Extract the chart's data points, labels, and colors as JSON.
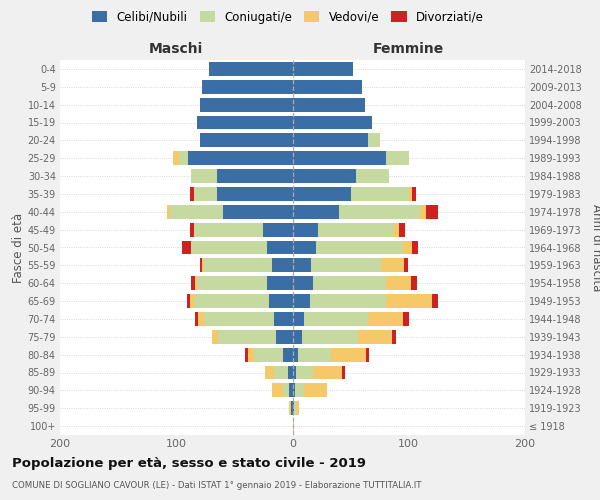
{
  "age_groups": [
    "100+",
    "95-99",
    "90-94",
    "85-89",
    "80-84",
    "75-79",
    "70-74",
    "65-69",
    "60-64",
    "55-59",
    "50-54",
    "45-49",
    "40-44",
    "35-39",
    "30-34",
    "25-29",
    "20-24",
    "15-19",
    "10-14",
    "5-9",
    "0-4"
  ],
  "birth_years": [
    "≤ 1918",
    "1919-1923",
    "1924-1928",
    "1929-1933",
    "1934-1938",
    "1939-1943",
    "1944-1948",
    "1949-1953",
    "1954-1958",
    "1959-1963",
    "1964-1968",
    "1969-1973",
    "1974-1978",
    "1979-1983",
    "1984-1988",
    "1989-1993",
    "1994-1998",
    "1999-2003",
    "2004-2008",
    "2009-2013",
    "2014-2018"
  ],
  "colors": {
    "celibe": "#3a6ea5",
    "coniugato": "#c5d9a0",
    "vedovo": "#f5c96a",
    "divorziato": "#cc2222"
  },
  "maschi": {
    "celibe": [
      0,
      1,
      3,
      4,
      8,
      14,
      16,
      20,
      22,
      18,
      22,
      25,
      60,
      65,
      65,
      90,
      80,
      82,
      80,
      78,
      72
    ],
    "coniugato": [
      0,
      0,
      5,
      12,
      25,
      50,
      60,
      65,
      60,
      58,
      65,
      60,
      45,
      20,
      22,
      8,
      0,
      0,
      0,
      0,
      0
    ],
    "vedovo": [
      0,
      2,
      10,
      8,
      5,
      5,
      5,
      3,
      2,
      2,
      0,
      0,
      3,
      0,
      0,
      5,
      0,
      0,
      0,
      0,
      0
    ],
    "divorziato": [
      0,
      0,
      0,
      0,
      3,
      0,
      3,
      3,
      3,
      2,
      8,
      3,
      0,
      3,
      0,
      0,
      0,
      0,
      0,
      0,
      0
    ]
  },
  "femmine": {
    "nubile": [
      0,
      1,
      2,
      3,
      5,
      8,
      10,
      15,
      18,
      16,
      20,
      22,
      40,
      50,
      55,
      80,
      65,
      68,
      62,
      60,
      52
    ],
    "coniugata": [
      0,
      2,
      8,
      15,
      28,
      48,
      55,
      65,
      62,
      60,
      75,
      65,
      70,
      50,
      28,
      20,
      10,
      0,
      0,
      0,
      0
    ],
    "vedova": [
      1,
      3,
      20,
      25,
      30,
      30,
      30,
      40,
      22,
      20,
      8,
      5,
      5,
      3,
      0,
      0,
      0,
      0,
      0,
      0,
      0
    ],
    "divorziata": [
      0,
      0,
      0,
      2,
      3,
      3,
      5,
      5,
      5,
      3,
      5,
      5,
      10,
      3,
      0,
      0,
      0,
      0,
      0,
      0,
      0
    ]
  },
  "title": "Popolazione per età, sesso e stato civile - 2019",
  "subtitle": "COMUNE DI SOGLIANO CAVOUR (LE) - Dati ISTAT 1° gennaio 2019 - Elaborazione TUTTITALIA.IT",
  "xlabel_left": "Maschi",
  "xlabel_right": "Femmine",
  "ylabel_left": "Fasce di età",
  "ylabel_right": "Anni di nascita",
  "xlim": 200,
  "bg_color": "#f0f0f0",
  "plot_bg": "#ffffff",
  "grid_color": "#cccccc"
}
